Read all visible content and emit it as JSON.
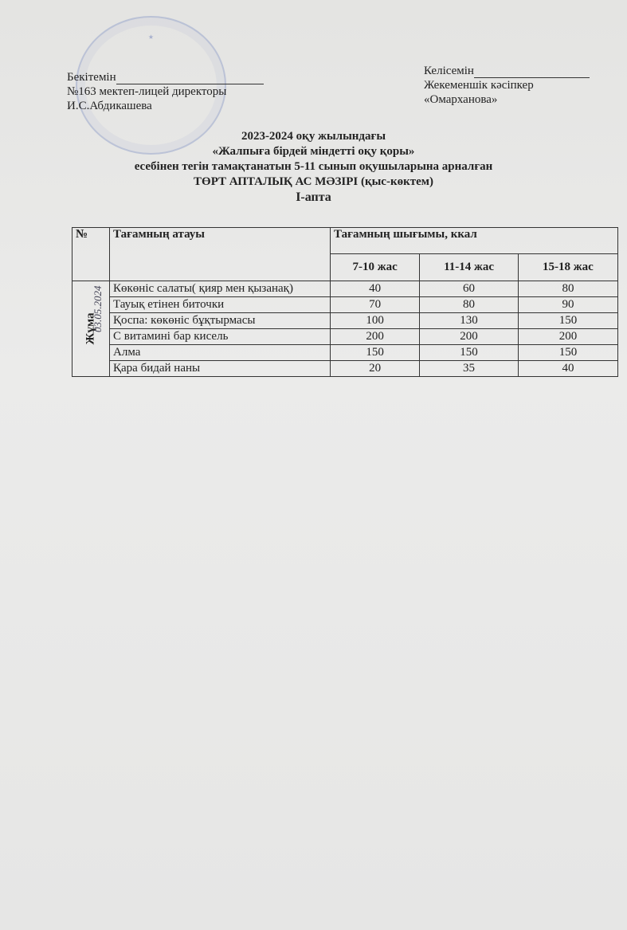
{
  "approval": {
    "label": "Бекітемін",
    "line2": "№163 мектеп-лицей директоры",
    "line3": "И.С.Абдикашева"
  },
  "agreement": {
    "label": "Келісемін",
    "line2": "Жекеменшік кәсіпкер",
    "line3": "«Омарханова»"
  },
  "heading": {
    "line1": "2023-2024 оқу жылындағы",
    "line2": "«Жалпыға бірдей міндетті оқу қоры»",
    "line3": "есебінен тегін тамақтанатын 5-11 сынып оқушыларына арналған",
    "line4": "ТӨРТ АПТАЛЫҚ АС МӘЗІРІ (қыс-көктем)",
    "line5": "І-апта"
  },
  "table": {
    "headers": {
      "no": "№",
      "name": "Тағамның атауы",
      "yield": "Тағамның шығымы, ккал",
      "ages": [
        "7-10 жас",
        "11-14 жас",
        "15-18 жас"
      ]
    },
    "day": "Жұма",
    "handwritten_date": "03.05.2024",
    "rows": [
      {
        "name": "Көкөніс салаты( қияр мен қызанақ)",
        "values": [
          "40",
          "60",
          "80"
        ]
      },
      {
        "name": "Тауық етінен биточки",
        "values": [
          "70",
          "80",
          "90"
        ]
      },
      {
        "name": "Қоспа: көкөніс бұқтырмасы",
        "values": [
          "100",
          "130",
          "150"
        ]
      },
      {
        "name": "С витаминi бар кисель",
        "values": [
          "200",
          "200",
          "200"
        ]
      },
      {
        "name": "Алма",
        "values": [
          "150",
          "150",
          "150"
        ]
      },
      {
        "name": "Қара бидай наны",
        "values": [
          "20",
          "35",
          "40"
        ]
      }
    ]
  }
}
